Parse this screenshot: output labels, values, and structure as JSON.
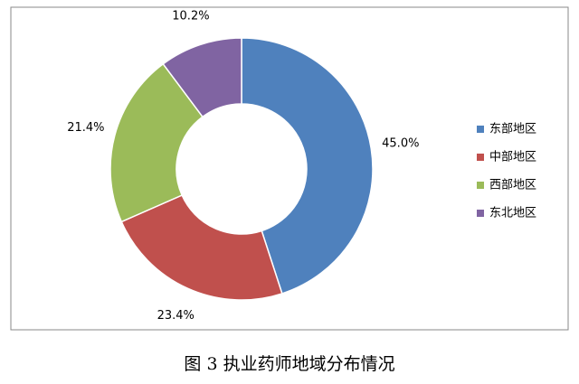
{
  "chart_data": {
    "type": "donut",
    "title": "图 3 执业药师地域分布情况",
    "categories": [
      "东部地区",
      "中部地区",
      "西部地区",
      "东北地区"
    ],
    "values": [
      45.0,
      23.4,
      21.4,
      10.2
    ],
    "value_labels": [
      "45.0%",
      "23.4%",
      "21.4%",
      "10.2%"
    ],
    "colors": [
      "#4f81bd",
      "#c0504d",
      "#9bbb59",
      "#8064a2"
    ],
    "legend": "right"
  }
}
